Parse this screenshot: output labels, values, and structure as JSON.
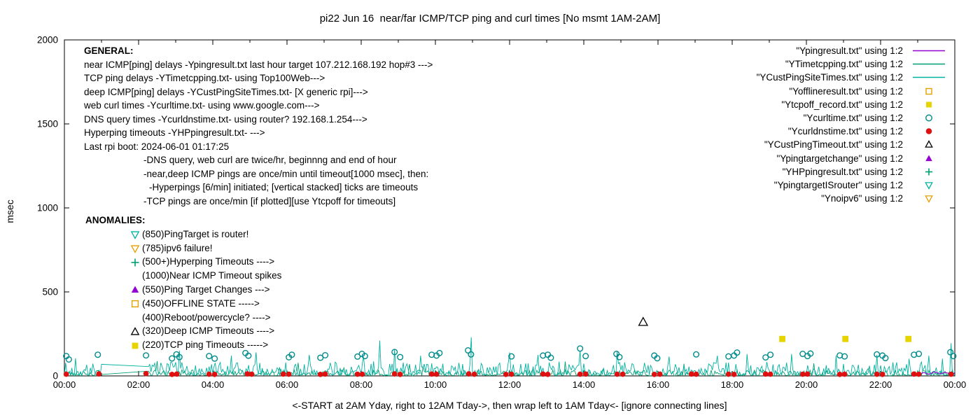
{
  "chart": {
    "title": "pi22 Jun 16  near/far ICMP/TCP ping and curl times [No msmt 1AM-2AM]",
    "xlabel": "<-START at 2AM Yday, right to 12AM Tday->, then wrap left to 1AM Tday<- [ignore connecting lines]",
    "ylabel": "msec"
  },
  "general": {
    "header": "GENERAL:",
    "lines": [
      {
        "text": "near ICMP[ping] delays -Ypingresult.txt last hour target 107.212.168.192 hop#3 --->",
        "indent": 0
      },
      {
        "text": "TCP ping delays -YTimetcpping.txt- using Top100Web--->",
        "indent": 0
      },
      {
        "text": "deep ICMP[ping] delays -YCustPingSiteTimes.txt- [X generic rpi]--->",
        "indent": 0
      },
      {
        "text": "web curl times -Ycurltime.txt- using www.google.com--->",
        "indent": 0
      },
      {
        "text": "DNS query times -Ycurldnstime.txt- using router? 192.168.1.254--->",
        "indent": 0
      },
      {
        "text": "Hyperping timeouts -YHPpingresult.txt- --->",
        "indent": 0
      },
      {
        "text": "Last rpi boot: 2024-06-01 01:17:25",
        "indent": 0
      },
      {
        "text": "-DNS query, web curl are twice/hr, beginnng and end of hour",
        "indent": 85
      },
      {
        "text": "-near,deep ICMP pings are once/min until timeout[1000 msec], then:",
        "indent": 85
      },
      {
        "text": "-Hyperpings [6/min] initiated; [vertical stacked] ticks are timeouts",
        "indent": 93
      },
      {
        "text": "-TCP pings are once/min [if plotted][use Ytcpoff for timeouts]",
        "indent": 85
      }
    ]
  },
  "anomalies": {
    "header": "ANOMALIES:",
    "entries": [
      {
        "symbol": "triangle-down-open",
        "color": "#00b2a0",
        "text": "(850)PingTarget is router!"
      },
      {
        "symbol": "triangle-down-open",
        "color": "#e69f00",
        "text": "(785)ipv6 failure!"
      },
      {
        "symbol": "plus",
        "color": "#009e73",
        "text": "(500+)Hyperping Timeouts ---->"
      },
      {
        "symbol": null,
        "color": null,
        "text": "(1000)Near ICMP Timeout spikes"
      },
      {
        "symbol": "triangle-up-filled",
        "color": "#9400d3",
        "text": "(550)Ping Target Changes --->"
      },
      {
        "symbol": "square-open",
        "color": "#e69f00",
        "text": "(450)OFFLINE STATE ----->"
      },
      {
        "symbol": null,
        "color": null,
        "text": "(400)Reboot/powercycle? ---->"
      },
      {
        "symbol": "triangle-up-open",
        "color": "#000000",
        "text": "(320)Deep ICMP Timeouts ---->"
      },
      {
        "symbol": "square-filled",
        "color": "#e6d300",
        "text": "(220)TCP ping Timeouts ----->"
      }
    ]
  },
  "legend": {
    "entries": [
      {
        "label": "\"Ypingresult.txt\" using 1:2",
        "type": "line",
        "color": "#9400d3"
      },
      {
        "label": "\"YTimetcpping.txt\" using 1:2",
        "type": "line",
        "color": "#009e73"
      },
      {
        "label": "\"YCustPingSiteTimes.txt\" using 1:2",
        "type": "line",
        "color": "#00b2a0"
      },
      {
        "label": "\"Yofflineresult.txt\" using 1:2",
        "type": "square-open",
        "color": "#e69f00"
      },
      {
        "label": "\"Ytcpoff_record.txt\" using 1:2",
        "type": "square-filled",
        "color": "#e6d300"
      },
      {
        "label": "\"Ycurltime.txt\" using 1:2",
        "type": "circle-open",
        "color": "#008b8b"
      },
      {
        "label": "\"Ycurldnstime.txt\" using 1:2",
        "type": "circle-filled",
        "color": "#e01010"
      },
      {
        "label": "\"YCustPingTimeout.txt\" using 1:2",
        "type": "triangle-up-open",
        "color": "#000000"
      },
      {
        "label": "\"Ypingtargetchange\" using 1:2",
        "type": "triangle-up-filled",
        "color": "#9400d3"
      },
      {
        "label": "\"YHPpingresult.txt\" using 1:2",
        "type": "plus",
        "color": "#009e73"
      },
      {
        "label": "\"YpingtargetISrouter\" using 1:2",
        "type": "triangle-down-open",
        "color": "#00b2a0"
      },
      {
        "label": "\"Ynoipv6\" using 1:2",
        "type": "triangle-down-open",
        "color": "#e69f00"
      }
    ]
  },
  "chart_data": {
    "type": "line",
    "title": "pi22 Jun 16  near/far ICMP/TCP ping and curl times [No msmt 1AM-2AM]",
    "xlabel": "<-START at 2AM Yday, right to 12AM Tday->, then wrap left to 1AM Tday<- [ignore connecting lines]",
    "ylabel": "msec",
    "xlim": [
      0,
      24
    ],
    "ylim": [
      0,
      2000
    ],
    "grid": false,
    "legend_position": "top-right",
    "xticks": {
      "values": [
        0,
        2,
        4,
        6,
        8,
        10,
        12,
        14,
        16,
        18,
        20,
        22,
        24
      ],
      "labels": [
        "00:00",
        "02:00",
        "04:00",
        "06:00",
        "08:00",
        "10:00",
        "12:00",
        "14:00",
        "16:00",
        "18:00",
        "20:00",
        "22:00",
        "00:00"
      ],
      "minor_every": 1
    },
    "yticks": {
      "values": [
        0,
        500,
        1000,
        1500,
        2000
      ],
      "labels": [
        "0",
        "500",
        "1000",
        "1500",
        "2000"
      ]
    },
    "no_measurement_gap_hours": [
      1.0,
      2.25
    ],
    "series": [
      {
        "name": "YTimetcpping.txt",
        "role": "noise-line",
        "color": "#009e73",
        "seed": 42,
        "base": 1,
        "amp": 34,
        "pow": 2.0,
        "bump": 0.04,
        "bump_amp": 45,
        "gap": [
          1.0,
          2.25
        ],
        "spikes": [
          [
            2.5,
            88
          ],
          [
            6.3,
            78
          ],
          [
            9.3,
            70
          ],
          [
            13.5,
            85
          ],
          [
            16.7,
            72
          ],
          [
            20.2,
            75
          ]
        ]
      },
      {
        "name": "YCustPingSiteTimes.txt",
        "role": "noise-line",
        "color": "#00b2a0",
        "seed": 7,
        "base": 4,
        "amp": 78,
        "pow": 2.2,
        "bump": 0.05,
        "bump_amp": 60,
        "gap": [
          1.0,
          2.25
        ],
        "spikes": [
          [
            0.3,
            105
          ],
          [
            3.1,
            150
          ],
          [
            4.5,
            120
          ],
          [
            5.15,
            140
          ],
          [
            6.6,
            125
          ],
          [
            8.5,
            210
          ],
          [
            8.9,
            160
          ],
          [
            9.6,
            120
          ],
          [
            10.95,
            230
          ],
          [
            12.0,
            140
          ],
          [
            12.75,
            125
          ],
          [
            13.9,
            150
          ],
          [
            14.9,
            145
          ],
          [
            16.3,
            115
          ],
          [
            17.6,
            120
          ],
          [
            18.4,
            130
          ],
          [
            19.6,
            130
          ],
          [
            20.8,
            120
          ],
          [
            21.9,
            125
          ],
          [
            23.3,
            120
          ],
          [
            23.9,
            195
          ]
        ]
      },
      {
        "name": "Ypingresult.txt",
        "role": "line",
        "color": "#9400d3",
        "points": [
          [
            23.05,
            12
          ],
          [
            23.17,
            20
          ],
          [
            23.3,
            9
          ],
          [
            23.45,
            24
          ],
          [
            23.6,
            13
          ],
          [
            23.75,
            21
          ],
          [
            23.88,
            11
          ],
          [
            24,
            16
          ]
        ]
      },
      {
        "name": "Ycurltime.txt",
        "role": "scatter",
        "symbol": "circle-open",
        "color": "#008b8b",
        "size": 9,
        "points": [
          [
            0.05,
            118
          ],
          [
            0.12,
            98
          ],
          [
            0.9,
            126
          ],
          [
            2.2,
            122
          ],
          [
            2.9,
            104
          ],
          [
            3.02,
            128
          ],
          [
            3.1,
            112
          ],
          [
            3.9,
            118
          ],
          [
            4.05,
            103
          ],
          [
            4.88,
            136
          ],
          [
            4.96,
            120
          ],
          [
            6.05,
            111
          ],
          [
            6.13,
            126
          ],
          [
            6.9,
            108
          ],
          [
            7.03,
            123
          ],
          [
            7.9,
            115
          ],
          [
            8.02,
            131
          ],
          [
            8.1,
            118
          ],
          [
            8.9,
            142
          ],
          [
            9.05,
            112
          ],
          [
            9.9,
            126
          ],
          [
            10.03,
            121
          ],
          [
            10.11,
            136
          ],
          [
            10.88,
            152
          ],
          [
            10.96,
            128
          ],
          [
            12.05,
            116
          ],
          [
            12.9,
            121
          ],
          [
            13.03,
            126
          ],
          [
            13.11,
            108
          ],
          [
            13.9,
            163
          ],
          [
            14.05,
            118
          ],
          [
            14.88,
            131
          ],
          [
            14.96,
            112
          ],
          [
            15.9,
            121
          ],
          [
            15.98,
            105
          ],
          [
            17.03,
            128
          ],
          [
            17.9,
            116
          ],
          [
            18.05,
            121
          ],
          [
            18.13,
            139
          ],
          [
            18.9,
            110
          ],
          [
            19.03,
            126
          ],
          [
            19.9,
            131
          ],
          [
            20.03,
            118
          ],
          [
            20.11,
            133
          ],
          [
            20.9,
            122
          ],
          [
            21.03,
            116
          ],
          [
            21.9,
            128
          ],
          [
            22.05,
            121
          ],
          [
            22.13,
            106
          ],
          [
            22.9,
            126
          ],
          [
            23.03,
            131
          ],
          [
            23.88,
            141
          ],
          [
            23.96,
            118
          ]
        ]
      },
      {
        "name": "Ycurldnstime.txt",
        "role": "scatter",
        "symbol": "circle-filled",
        "color": "#e01010",
        "size": 9,
        "points": [
          [
            0.05,
            10
          ],
          [
            0.93,
            12
          ],
          [
            2.2,
            14
          ],
          [
            2.9,
            9
          ],
          [
            3.03,
            11
          ],
          [
            3.9,
            10
          ],
          [
            4.05,
            9
          ],
          [
            4.93,
            12
          ],
          [
            5.05,
            10
          ],
          [
            5.9,
            11
          ],
          [
            6.05,
            10
          ],
          [
            6.9,
            9
          ],
          [
            7.03,
            11
          ],
          [
            7.9,
            10
          ],
          [
            8.03,
            10
          ],
          [
            8.9,
            12
          ],
          [
            9.05,
            9
          ],
          [
            9.9,
            11
          ],
          [
            10.03,
            10
          ],
          [
            10.9,
            12
          ],
          [
            11.05,
            10
          ],
          [
            11.9,
            9
          ],
          [
            12.05,
            10
          ],
          [
            12.9,
            11
          ],
          [
            13.03,
            9
          ],
          [
            13.9,
            10
          ],
          [
            14.05,
            11
          ],
          [
            14.9,
            10
          ],
          [
            15.05,
            10
          ],
          [
            15.9,
            9
          ],
          [
            16.05,
            10
          ],
          [
            16.9,
            11
          ],
          [
            17.03,
            10
          ],
          [
            17.9,
            10
          ],
          [
            18.05,
            9
          ],
          [
            18.9,
            11
          ],
          [
            19.03,
            10
          ],
          [
            19.9,
            10
          ],
          [
            20.03,
            11
          ],
          [
            20.9,
            9
          ],
          [
            21.03,
            10
          ],
          [
            21.9,
            10
          ],
          [
            22.05,
            9
          ],
          [
            22.9,
            11
          ],
          [
            23.03,
            10
          ],
          [
            23.9,
            10
          ]
        ]
      },
      {
        "name": "Ytcpoff_record.txt",
        "role": "scatter",
        "symbol": "square-filled",
        "color": "#e6d300",
        "size": 11,
        "points": [
          [
            19.35,
            220
          ],
          [
            21.05,
            220
          ],
          [
            22.75,
            220
          ]
        ]
      },
      {
        "name": "YCustPingTimeout.txt",
        "role": "scatter",
        "symbol": "triangle-up-open",
        "color": "#000000",
        "size": 13,
        "points": [
          [
            15.6,
            320
          ]
        ]
      }
    ]
  }
}
